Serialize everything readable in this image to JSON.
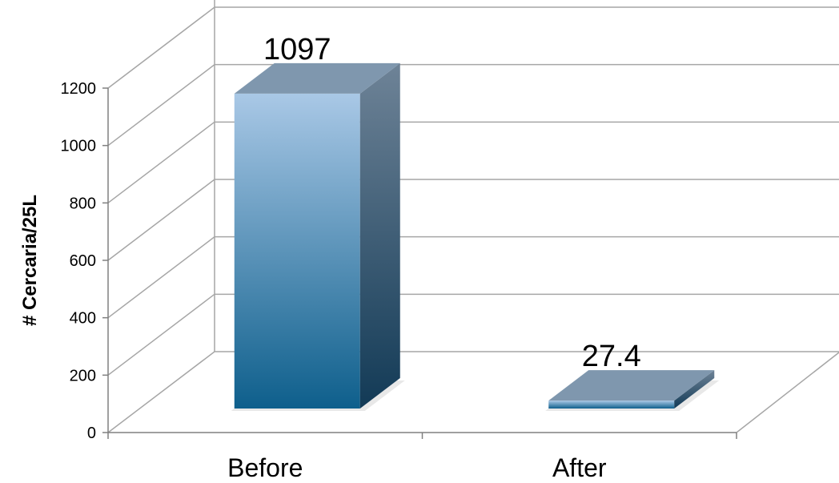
{
  "chart_data": {
    "type": "bar",
    "style": "3d-column",
    "categories": [
      "Before",
      "After"
    ],
    "values": [
      1097,
      27.4
    ],
    "data_labels": [
      "1097",
      "27.4"
    ],
    "ylabel": "# Cercaria/25L",
    "xlabel": "",
    "ylim": [
      0,
      1200
    ],
    "yticks": [
      0,
      200,
      400,
      600,
      800,
      1000,
      1200
    ],
    "ytick_labels": [
      "0",
      "200",
      "400",
      "600",
      "800",
      "1000",
      "1200"
    ],
    "grid": true,
    "legend": "none",
    "colors": {
      "bar_top_front": "#a9c8e6",
      "bar_bottom_front": "#0e5f8c",
      "bar_side_top": "#6e8397",
      "bar_side_bottom": "#123a56",
      "bar_cap": "#7f97ae",
      "grid": "#a6a6a6"
    }
  }
}
